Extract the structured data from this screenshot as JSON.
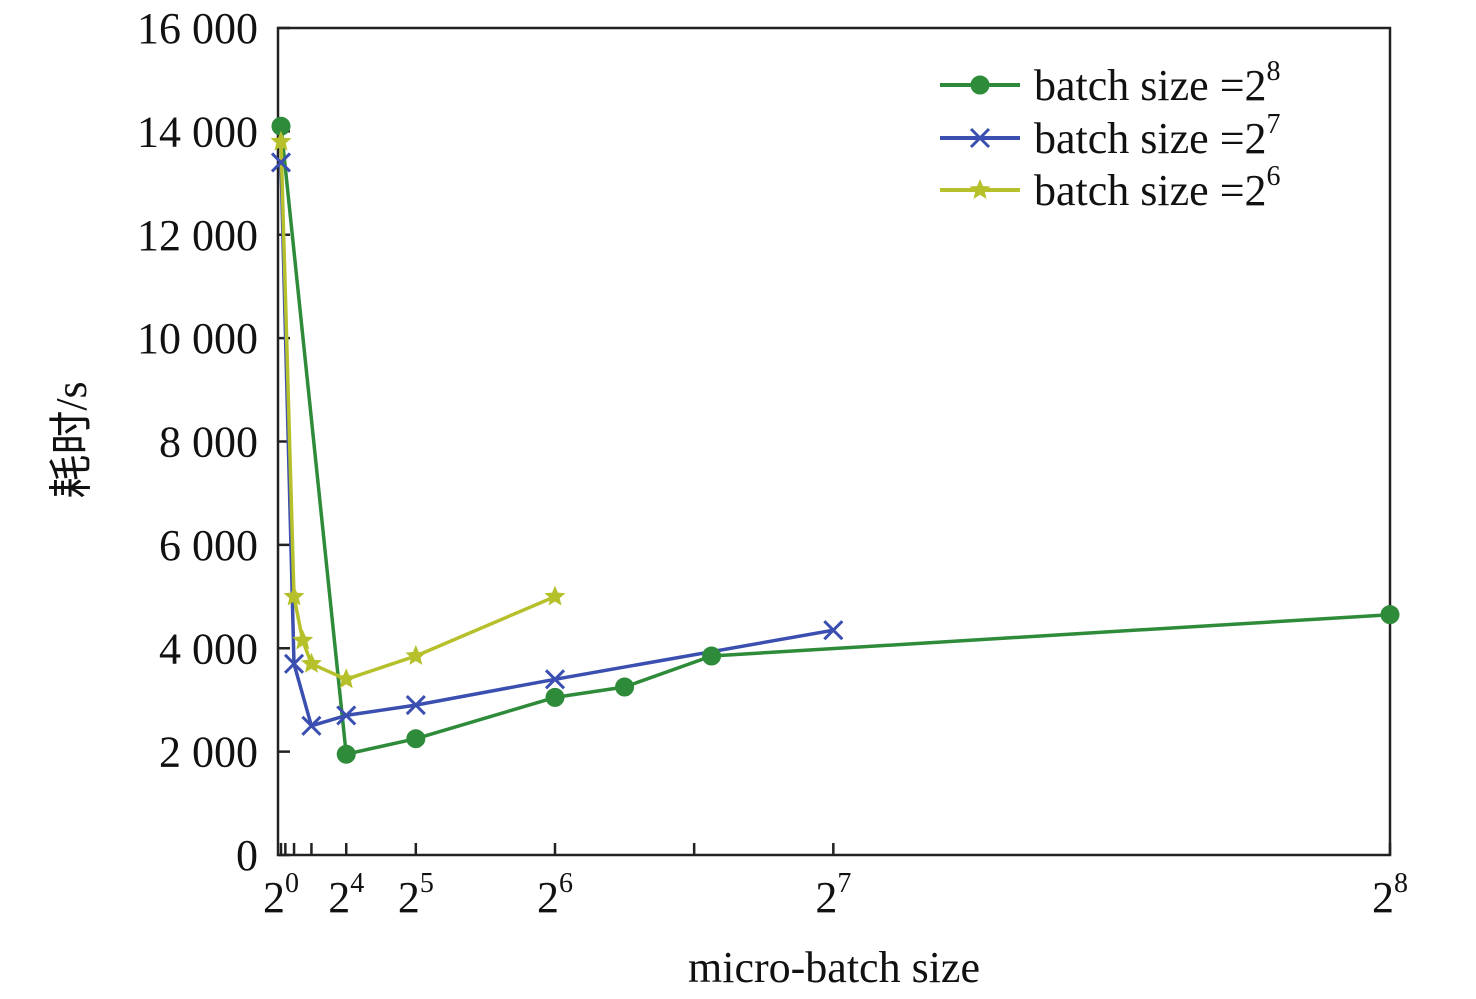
{
  "chart_data": {
    "type": "line",
    "title": "",
    "xlabel": "micro-batch size",
    "ylabel": "耗时/s",
    "xlim": [
      1,
      256
    ],
    "ylim": [
      0,
      16000
    ],
    "grid": false,
    "legend_position": "top-right",
    "y_ticks": [
      {
        "value": 0,
        "label": "0"
      },
      {
        "value": 2000,
        "label": "2 000"
      },
      {
        "value": 4000,
        "label": "4 000"
      },
      {
        "value": 6000,
        "label": "6 000"
      },
      {
        "value": 8000,
        "label": "8 000"
      },
      {
        "value": 10000,
        "label": "10 000"
      },
      {
        "value": 12000,
        "label": "12 000"
      },
      {
        "value": 14000,
        "label": "14 000"
      },
      {
        "value": 16000,
        "label": "16 000"
      }
    ],
    "x_tick_marks": [
      1,
      2,
      4,
      8,
      16,
      32,
      64,
      96,
      128,
      256
    ],
    "x_tick_labels": [
      {
        "value": 1,
        "base": "2",
        "exp": "0"
      },
      {
        "value": 16,
        "base": "2",
        "exp": "4"
      },
      {
        "value": 32,
        "base": "2",
        "exp": "5"
      },
      {
        "value": 64,
        "base": "2",
        "exp": "6"
      },
      {
        "value": 128,
        "base": "2",
        "exp": "7"
      },
      {
        "value": 256,
        "base": "2",
        "exp": "8"
      }
    ],
    "series": [
      {
        "name": "batch size =2^8",
        "label_base": "batch size =2",
        "label_exp": "8",
        "color": "#2e8b3a",
        "marker": "circle",
        "x": [
          1,
          16,
          32,
          64,
          80,
          100,
          256
        ],
        "y": [
          14100,
          1950,
          2250,
          3050,
          3250,
          3850,
          4650
        ]
      },
      {
        "name": "batch size =2^7",
        "label_base": "batch size =2",
        "label_exp": "7",
        "color": "#3a4fb0",
        "marker": "x",
        "x": [
          1,
          4,
          8,
          16,
          32,
          64,
          128
        ],
        "y": [
          13400,
          3700,
          2500,
          2700,
          2900,
          3400,
          4350
        ]
      },
      {
        "name": "batch size =2^6",
        "label_base": "batch size =2",
        "label_exp": "6",
        "color": "#b5c02a",
        "marker": "star",
        "x": [
          1,
          4,
          6,
          8,
          16,
          32,
          64
        ],
        "y": [
          13800,
          5000,
          4150,
          3700,
          3400,
          3850,
          5000
        ]
      }
    ]
  }
}
